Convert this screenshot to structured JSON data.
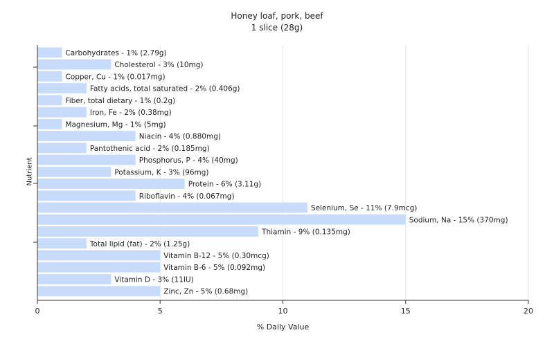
{
  "chart_data": {
    "type": "bar",
    "orientation": "horizontal",
    "title": "Honey loaf, pork, beef",
    "subtitle": "1 slice (28g)",
    "xlabel": "% Daily Value",
    "ylabel": "Nutrient",
    "xlim": [
      0,
      20
    ],
    "xticks": [
      0,
      5,
      10,
      15,
      20
    ],
    "grid": true,
    "bar_color": "#c6dcfa",
    "categories": [
      "Carbohydrates",
      "Cholesterol",
      "Copper, Cu",
      "Fatty acids, total saturated",
      "Fiber, total dietary",
      "Iron, Fe",
      "Magnesium, Mg",
      "Niacin",
      "Pantothenic acid",
      "Phosphorus, P",
      "Potassium, K",
      "Protein",
      "Riboflavin",
      "Selenium, Se",
      "Sodium, Na",
      "Thiamin",
      "Total lipid (fat)",
      "Vitamin B-12",
      "Vitamin B-6",
      "Vitamin D",
      "Zinc, Zn"
    ],
    "values": [
      1,
      3,
      1,
      2,
      1,
      2,
      1,
      4,
      2,
      4,
      3,
      6,
      4,
      11,
      15,
      9,
      2,
      5,
      5,
      3,
      5
    ],
    "data_labels": [
      "Carbohydrates - 1% (2.79g)",
      "Cholesterol - 3% (10mg)",
      "Copper, Cu - 1% (0.017mg)",
      "Fatty acids, total saturated - 2% (0.406g)",
      "Fiber, total dietary - 1% (0.2g)",
      "Iron, Fe - 2% (0.38mg)",
      "Magnesium, Mg - 1% (5mg)",
      "Niacin - 4% (0.880mg)",
      "Pantothenic acid - 2% (0.185mg)",
      "Phosphorus, P - 4% (40mg)",
      "Potassium, K - 3% (96mg)",
      "Protein - 6% (3.11g)",
      "Riboflavin - 4% (0.067mg)",
      "Selenium, Se - 11% (7.9mcg)",
      "Sodium, Na - 15% (370mg)",
      "Thiamin - 9% (0.135mg)",
      "Total lipid (fat) - 2% (1.25g)",
      "Vitamin B-12 - 5% (0.30mcg)",
      "Vitamin B-6 - 5% (0.092mg)",
      "Vitamin D - 3% (11IU)",
      "Zinc, Zn - 5% (0.68mg)"
    ]
  }
}
